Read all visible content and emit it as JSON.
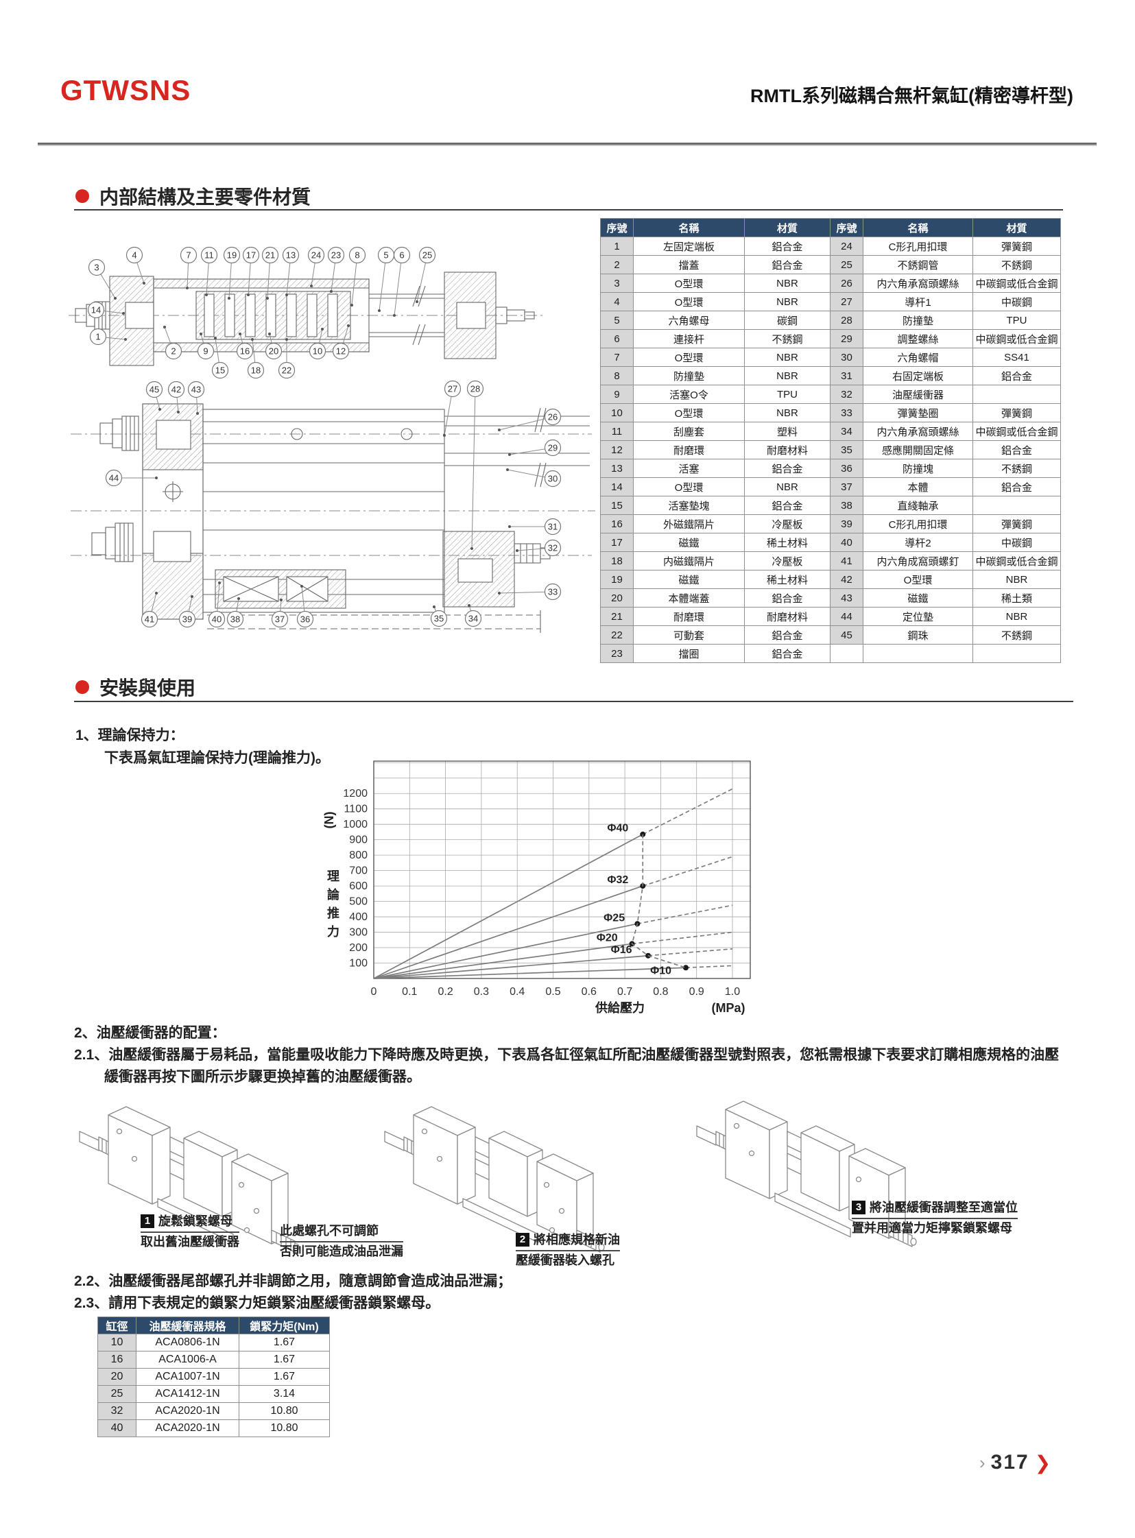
{
  "page": {
    "brand": "GTWSNS",
    "title": "RMTL系列磁耦合無杆氣缸(精密導杆型)",
    "page_number": "317",
    "footer_prev_icon": "›",
    "footer_next_icon": "❯"
  },
  "colors": {
    "accent": "#d7261f",
    "table_header": "#2d4a6b",
    "row_gray": "#d7d7d7"
  },
  "section1": {
    "title": "内部結構及主要零件材質",
    "table": {
      "headers": [
        "序號",
        "名稱",
        "材質",
        "序號",
        "名稱",
        "材質"
      ],
      "rows": [
        [
          "1",
          "左固定端板",
          "鋁合金",
          "24",
          "C形孔用扣環",
          "彈簧鋼"
        ],
        [
          "2",
          "擋蓋",
          "鋁合金",
          "25",
          "不銹鋼管",
          "不銹鋼"
        ],
        [
          "3",
          "O型環",
          "NBR",
          "26",
          "内六角承窩頭螺絲",
          "中碳鋼或低合金鋼"
        ],
        [
          "4",
          "O型環",
          "NBR",
          "27",
          "導杆1",
          "中碳鋼"
        ],
        [
          "5",
          "六角螺母",
          "碳鋼",
          "28",
          "防撞墊",
          "TPU"
        ],
        [
          "6",
          "連接杆",
          "不銹鋼",
          "29",
          "調整螺絲",
          "中碳鋼或低合金鋼"
        ],
        [
          "7",
          "O型環",
          "NBR",
          "30",
          "六角螺帽",
          "SS41"
        ],
        [
          "8",
          "防撞墊",
          "NBR",
          "31",
          "右固定端板",
          "鋁合金"
        ],
        [
          "9",
          "活塞O令",
          "TPU",
          "32",
          "油壓緩衝器",
          ""
        ],
        [
          "10",
          "O型環",
          "NBR",
          "33",
          "彈簧墊圈",
          "彈簧鋼"
        ],
        [
          "11",
          "刮塵套",
          "塑料",
          "34",
          "内六角承窩頭螺絲",
          "中碳鋼或低合金鋼"
        ],
        [
          "12",
          "耐磨環",
          "耐磨材料",
          "35",
          "感應開關固定條",
          "鋁合金"
        ],
        [
          "13",
          "活塞",
          "鋁合金",
          "36",
          "防撞塊",
          "不銹鋼"
        ],
        [
          "14",
          "O型環",
          "NBR",
          "37",
          "本體",
          "鋁合金"
        ],
        [
          "15",
          "活塞墊塊",
          "鋁合金",
          "38",
          "直綫軸承",
          ""
        ],
        [
          "16",
          "外磁鐵隔片",
          "冷壓板",
          "39",
          "C形孔用扣環",
          "彈簧鋼"
        ],
        [
          "17",
          "磁鐵",
          "稀土材料",
          "40",
          "導杆2",
          "中碳鋼"
        ],
        [
          "18",
          "内磁鐵隔片",
          "冷壓板",
          "41",
          "内六角成窩頭螺釘",
          "中碳鋼或低合金鋼"
        ],
        [
          "19",
          "磁鐵",
          "稀土材料",
          "42",
          "O型環",
          "NBR"
        ],
        [
          "20",
          "本體端蓋",
          "鋁合金",
          "43",
          "磁鐵",
          "稀土類"
        ],
        [
          "21",
          "耐磨環",
          "耐磨材料",
          "44",
          "定位墊",
          "NBR"
        ],
        [
          "22",
          "可動套",
          "鋁合金",
          "45",
          "鋼珠",
          "不銹鋼"
        ],
        [
          "23",
          "擋圈",
          "鋁合金",
          "",
          "",
          ""
        ]
      ]
    },
    "diagram1_callouts": [
      [
        "3",
        53,
        45,
        80,
        90
      ],
      [
        "4",
        108,
        27,
        122,
        68
      ],
      [
        "7",
        187,
        27,
        185,
        75
      ],
      [
        "11",
        217,
        27,
        213,
        85
      ],
      [
        "19",
        250,
        27,
        246,
        90
      ],
      [
        "17",
        278,
        27,
        274,
        85
      ],
      [
        "21",
        306,
        27,
        302,
        90
      ],
      [
        "13",
        336,
        27,
        330,
        85
      ],
      [
        "24",
        373,
        27,
        366,
        72
      ],
      [
        "23",
        402,
        27,
        395,
        80
      ],
      [
        "8",
        433,
        27,
        425,
        100
      ],
      [
        "5",
        475,
        27,
        465,
        108
      ],
      [
        "6",
        498,
        27,
        487,
        115
      ],
      [
        "25",
        535,
        27,
        520,
        95
      ],
      [
        "14",
        52,
        107,
        92,
        112
      ],
      [
        "1",
        55,
        146,
        95,
        150
      ],
      [
        "2",
        165,
        167,
        152,
        132
      ],
      [
        "9",
        212,
        167,
        205,
        142
      ],
      [
        "16",
        269,
        167,
        262,
        142
      ],
      [
        "20",
        311,
        167,
        305,
        142
      ],
      [
        "10",
        375,
        167,
        382,
        135
      ],
      [
        "12",
        409,
        167,
        420,
        130
      ],
      [
        "15",
        233,
        195,
        226,
        148
      ],
      [
        "18",
        285,
        195,
        280,
        150
      ],
      [
        "22",
        330,
        195,
        330,
        150
      ]
    ],
    "diagram2_callouts": [
      [
        "45",
        137,
        223,
        145,
        252
      ],
      [
        "42",
        169,
        223,
        172,
        256
      ],
      [
        "43",
        198,
        223,
        200,
        258
      ],
      [
        "27",
        572,
        222,
        560,
        290
      ],
      [
        "28",
        605,
        222,
        600,
        455
      ],
      [
        "26",
        718,
        263,
        640,
        282
      ],
      [
        "29",
        718,
        308,
        655,
        318
      ],
      [
        "30",
        718,
        353,
        652,
        340
      ],
      [
        "44",
        78,
        352,
        140,
        352
      ],
      [
        "31",
        718,
        423,
        655,
        423
      ],
      [
        "32",
        718,
        454,
        666,
        458
      ],
      [
        "33",
        718,
        518,
        640,
        520
      ],
      [
        "41",
        130,
        558,
        140,
        520
      ],
      [
        "39",
        185,
        558,
        192,
        525
      ],
      [
        "40",
        228,
        558,
        232,
        505
      ],
      [
        "38",
        255,
        558,
        260,
        528
      ],
      [
        "37",
        320,
        558,
        322,
        530
      ],
      [
        "36",
        357,
        558,
        352,
        510
      ],
      [
        "35",
        552,
        557,
        545,
        540
      ],
      [
        "34",
        602,
        557,
        596,
        538
      ]
    ]
  },
  "section2": {
    "title": "安裝與使用",
    "item1": "1、理論保持力：",
    "item1_sub": "下表爲氣缸理論保持力(理論推力)。",
    "item2": "2、油壓緩衝器的配置：",
    "item2_1a": "2.1、油壓緩衝器屬于易耗品，當能量吸收能力下降時應及時更换，下表爲各缸徑氣缸所配油壓緩衝器型號對照表，您衹需根據下表要求訂購相應規格的油壓",
    "item2_1b": "緩衝器再按下圖所示步驟更换掉舊的油壓緩衝器。",
    "item2_2": "2.2、油壓緩衝器尾部螺孔并非調節之用，隨意調節會造成油品泄漏；",
    "item2_3": "2.3、請用下表規定的鎖緊力矩鎖緊油壓緩衝器鎖緊螺母。",
    "steps": [
      {
        "num": "1",
        "line1": "旋鬆鎖緊螺母",
        "line2": "取出舊油壓緩衝器"
      },
      {
        "num": "2",
        "line1": "將相應規格新油",
        "line2": "壓緩衝器裝入螺孔"
      },
      {
        "num": "3",
        "line1": "將油壓緩衝器調整至適當位",
        "line2": "置并用適當力矩擰緊鎖緊螺母"
      }
    ],
    "note": {
      "line1": "此處螺孔不可調節",
      "line2": "否則可能造成油品泄漏"
    },
    "buffer_table": {
      "headers": [
        "缸徑",
        "油壓緩衝器規格",
        "鎖緊力矩(Nm)"
      ],
      "rows": [
        [
          "10",
          "ACA0806-1N",
          "1.67"
        ],
        [
          "16",
          "ACA1006-A",
          "1.67"
        ],
        [
          "20",
          "ACA1007-1N",
          "1.67"
        ],
        [
          "25",
          "ACA1412-1N",
          "3.14"
        ],
        [
          "32",
          "ACA2020-1N",
          "10.80"
        ],
        [
          "40",
          "ACA2020-1N",
          "10.80"
        ]
      ]
    }
  },
  "chart_data": {
    "type": "line",
    "title": "",
    "xlabel": "供給壓力",
    "xunit": "(MPa)",
    "ylabel": "理論推力",
    "yunit": "(N)",
    "xlim": [
      0,
      1.05
    ],
    "ylim": [
      0,
      1410
    ],
    "grid": true,
    "xticks": [
      "0",
      "0.1",
      "0.2",
      "0.3",
      "0.4",
      "0.5",
      "0.6",
      "0.7",
      "0.8",
      "0.9",
      "1.0"
    ],
    "yticks": [
      100,
      200,
      300,
      400,
      500,
      600,
      700,
      800,
      900,
      1000,
      1100,
      1200
    ],
    "series": [
      {
        "name": "Φ40",
        "solid": [
          [
            0,
            0
          ],
          [
            0.75,
            935
          ]
        ],
        "dashed": [
          [
            0.75,
            935
          ],
          [
            1.0,
            1230
          ]
        ],
        "marker": [
          0.75,
          935
        ],
        "label": [
          0.71,
          955
        ]
      },
      {
        "name": "Φ32",
        "solid": [
          [
            0,
            0
          ],
          [
            0.75,
            600
          ]
        ],
        "dashed": [
          [
            0.75,
            600
          ],
          [
            1.0,
            790
          ]
        ],
        "marker": [
          0.75,
          600
        ],
        "label": [
          0.71,
          618
        ]
      },
      {
        "name": "Φ25",
        "solid": [
          [
            0,
            0
          ],
          [
            0.735,
            355
          ]
        ],
        "dashed": [
          [
            0.735,
            355
          ],
          [
            1.0,
            475
          ]
        ],
        "marker": [
          0.735,
          355
        ],
        "label": [
          0.7,
          372
        ]
      },
      {
        "name": "Φ20",
        "solid": [
          [
            0,
            0
          ],
          [
            0.72,
            225
          ]
        ],
        "dashed": [
          [
            0.72,
            225
          ],
          [
            1.0,
            300
          ]
        ],
        "marker": [
          0.72,
          225
        ],
        "label": [
          0.68,
          242
        ]
      },
      {
        "name": "Φ16",
        "solid": [
          [
            0,
            0
          ],
          [
            0.765,
            148
          ]
        ],
        "dashed": [
          [
            0.765,
            148
          ],
          [
            1.0,
            192
          ]
        ],
        "marker": [
          0.765,
          148
        ],
        "label": [
          0.72,
          165
        ]
      },
      {
        "name": "Φ10",
        "solid": [
          [
            0,
            0
          ],
          [
            0.87,
            70
          ]
        ],
        "dashed": [
          [
            0.87,
            70
          ],
          [
            1.0,
            83
          ]
        ],
        "marker": [
          0.87,
          70
        ],
        "label": [
          0.83,
          30
        ]
      }
    ],
    "limit_line": [
      [
        0.75,
        935
      ],
      [
        0.75,
        600
      ],
      [
        0.735,
        355
      ],
      [
        0.72,
        225
      ],
      [
        0.765,
        148
      ],
      [
        0.87,
        70
      ]
    ]
  }
}
